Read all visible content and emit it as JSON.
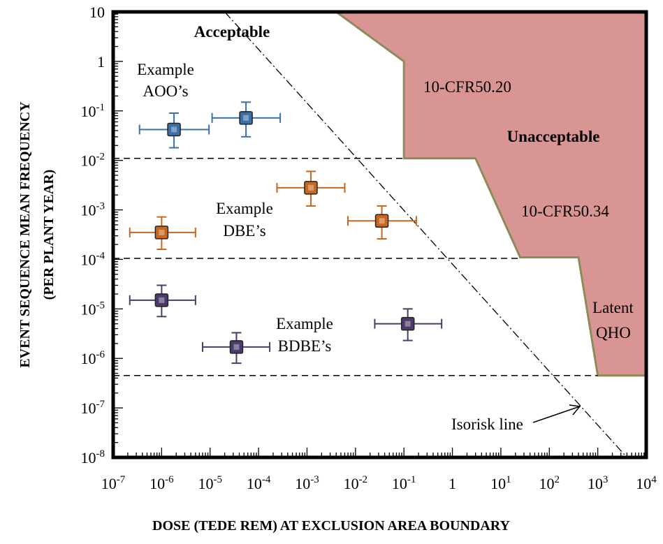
{
  "chart_data": {
    "type": "scatter",
    "title": "",
    "xlabel": "DOSE (TEDE REM) AT EXCLUSION AREA BOUNDARY",
    "ylabel_line1": "EVENT SEQUENCE MEAN FREQUENCY",
    "ylabel_line2": "(PER PLANT YEAR)",
    "x_scale": "log",
    "y_scale": "log",
    "xlim": [
      1e-07,
      10000.0
    ],
    "ylim": [
      1e-08,
      10
    ],
    "x_ticks": [
      {
        "base": "10",
        "exp": "-7"
      },
      {
        "base": "10",
        "exp": "-6"
      },
      {
        "base": "10",
        "exp": "-5"
      },
      {
        "base": "10",
        "exp": "-4"
      },
      {
        "base": "10",
        "exp": "-3"
      },
      {
        "base": "10",
        "exp": "-2"
      },
      {
        "base": "10",
        "exp": "-1"
      },
      {
        "base": "1",
        "exp": ""
      },
      {
        "base": "10",
        "exp": "1"
      },
      {
        "base": "10",
        "exp": "2"
      },
      {
        "base": "10",
        "exp": "3"
      },
      {
        "base": "10",
        "exp": "4"
      }
    ],
    "y_ticks": [
      {
        "base": "10",
        "exp": ""
      },
      {
        "base": "1",
        "exp": ""
      },
      {
        "base": "10",
        "exp": "-1"
      },
      {
        "base": "10",
        "exp": "-2"
      },
      {
        "base": "10",
        "exp": "-3"
      },
      {
        "base": "10",
        "exp": "-4"
      },
      {
        "base": "10",
        "exp": "-5"
      },
      {
        "base": "10",
        "exp": "-6"
      },
      {
        "base": "10",
        "exp": "-7"
      },
      {
        "base": "10",
        "exp": "-8"
      }
    ],
    "series": [
      {
        "name": "Example AOO's",
        "color": "#3b6fa8",
        "points": [
          {
            "x": 1.8e-06,
            "y": 0.042,
            "xerr": [
              3.5e-07,
              9.5e-06
            ],
            "yerr": [
              0.018,
              0.09
            ]
          },
          {
            "x": 5.5e-05,
            "y": 0.072,
            "xerr": [
              1.1e-05,
              0.00028
            ],
            "yerr": [
              0.03,
              0.15
            ]
          }
        ]
      },
      {
        "name": "Example DBE's",
        "color": "#c7661e",
        "points": [
          {
            "x": 1e-06,
            "y": 0.00035,
            "xerr": [
              2.2e-07,
              5e-06
            ],
            "yerr": [
              0.00016,
              0.00072
            ]
          },
          {
            "x": 0.0012,
            "y": 0.0028,
            "xerr": [
              0.00024,
              0.006
            ],
            "yerr": [
              0.0012,
              0.006
            ]
          },
          {
            "x": 0.035,
            "y": 0.0006,
            "xerr": [
              0.007,
              0.18
            ],
            "yerr": [
              0.00026,
              0.0012
            ]
          }
        ]
      },
      {
        "name": "Example BDBE's",
        "color": "#4a3b6b",
        "points": [
          {
            "x": 1e-06,
            "y": 1.5e-05,
            "xerr": [
              2.2e-07,
              5e-06
            ],
            "yerr": [
              7e-06,
              3e-05
            ]
          },
          {
            "x": 3.5e-05,
            "y": 1.7e-06,
            "xerr": [
              7e-06,
              0.00017
            ],
            "yerr": [
              8e-07,
              3.3e-06
            ]
          },
          {
            "x": 0.12,
            "y": 5e-06,
            "xerr": [
              0.025,
              0.6
            ],
            "yerr": [
              2.3e-06,
              1e-05
            ]
          }
        ]
      }
    ],
    "boundary": {
      "name": "Unacceptable region boundary",
      "fill": "#d99494",
      "stroke": "#8c8c5a",
      "vertices": [
        [
          0.004,
          10
        ],
        [
          0.1,
          1.0
        ],
        [
          0.1,
          0.011
        ],
        [
          3,
          0.011
        ],
        [
          25,
          0.00011
        ],
        [
          400,
          0.00011
        ],
        [
          1000,
          4.5e-07
        ],
        [
          10000.0,
          4.5e-07
        ]
      ]
    },
    "horizontal_lines": [
      0.011,
      0.000105,
      4.5e-07
    ],
    "isorisk_line": {
      "x1": 2e-05,
      "y1": 10,
      "x2": 4000.0,
      "y2": 1e-08
    }
  },
  "labels": {
    "acceptable": "Acceptable",
    "unacceptable": "Unacceptable",
    "cfr5020": "10-CFR50.20",
    "cfr5034": "10-CFR50.34",
    "latent_line1": "Latent",
    "latent_line2": "QHO",
    "aoo_line1": "Example",
    "aoo_line2": "AOO’s",
    "dbe_line1": "Example",
    "dbe_line2": "DBE’s",
    "bdbe_line1": "Example",
    "bdbe_line2": "BDBE’s",
    "isorisk": "Isorisk line"
  }
}
